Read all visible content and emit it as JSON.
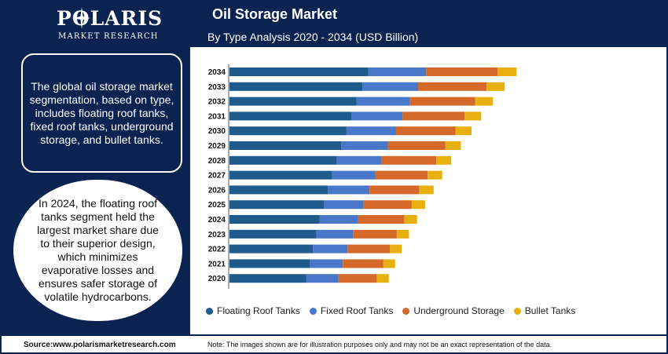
{
  "brand": {
    "name": "POLARIS",
    "tagline": "MARKET RESEARCH"
  },
  "chart_title": "Oil Storage Market",
  "chart_subtitle": "By Type Analysis 2020 - 2034 (USD Billion)",
  "sidebar": {
    "box1_text": "The global oil storage market segmentation, based on type, includes floating roof tanks, fixed roof tanks, underground storage, and bullet tanks.",
    "box2_text": "In 2024, the floating roof tanks segment held the largest market share due to their superior design, which minimizes evaporative losses and ensures safer storage of volatile hydrocarbons."
  },
  "footer": {
    "source": "Source:www.polarismarketresearch.com",
    "note": "Note: The images shown are for illustration purposes only and may not be an exact representation of the data."
  },
  "colors": {
    "navy": "#0b2350",
    "floating": "#1e5b8c",
    "fixed": "#4a78c8",
    "underground": "#d4692a",
    "bullet": "#e7b00f"
  },
  "chart_data": {
    "type": "bar",
    "orientation": "horizontal",
    "stacked": true,
    "categories": [
      "2034",
      "2033",
      "2032",
      "2031",
      "2030",
      "2029",
      "2028",
      "2027",
      "2026",
      "2025",
      "2024",
      "2023",
      "2022",
      "2021",
      "2020"
    ],
    "series": [
      {
        "name": "Floating Roof Tanks",
        "color": "#1e5b8c",
        "values": [
          260,
          249,
          238,
          228,
          219,
          209,
          201,
          192,
          184,
          177,
          169,
          163,
          156,
          150,
          144
        ]
      },
      {
        "name": "Fixed Roof Tanks",
        "color": "#4a78c8",
        "values": [
          108,
          104,
          100,
          96,
          92,
          88,
          84,
          81,
          78,
          74,
          72,
          68,
          65,
          62,
          60
        ]
      },
      {
        "name": "Underground Storage",
        "color": "#d4692a",
        "values": [
          134,
          128,
          122,
          116,
          112,
          107,
          102,
          98,
          93,
          90,
          86,
          82,
          79,
          76,
          72
        ]
      },
      {
        "name": "Bullet Tanks",
        "color": "#e7b00f",
        "values": [
          35,
          34,
          33,
          31,
          30,
          29,
          28,
          27,
          27,
          25,
          24,
          23,
          22,
          22,
          22
        ]
      }
    ],
    "grid": false,
    "legend_position": "bottom"
  }
}
